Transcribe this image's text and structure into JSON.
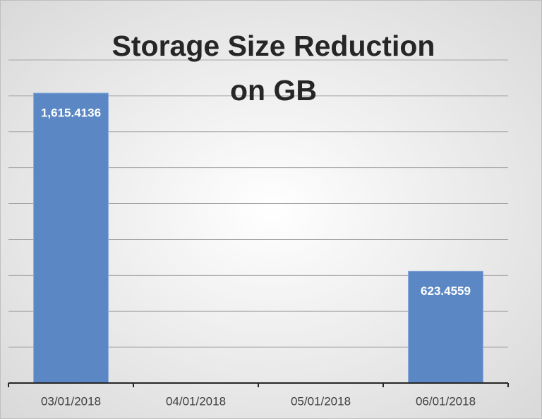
{
  "chart_data": {
    "type": "bar",
    "title": "Storage Size Reduction on GB",
    "categories": [
      "03/01/2018",
      "04/01/2018",
      "05/01/2018",
      "06/01/2018"
    ],
    "values": [
      1615.4136,
      null,
      null,
      623.4559
    ],
    "value_labels": [
      "1,615.4136",
      null,
      null,
      "623.4559"
    ],
    "color": "#5b87c5",
    "ylim": [
      0,
      1800
    ],
    "yticks": [
      0,
      200,
      400,
      600,
      800,
      1000,
      1200,
      1400,
      1600,
      1800
    ],
    "grid": true
  }
}
